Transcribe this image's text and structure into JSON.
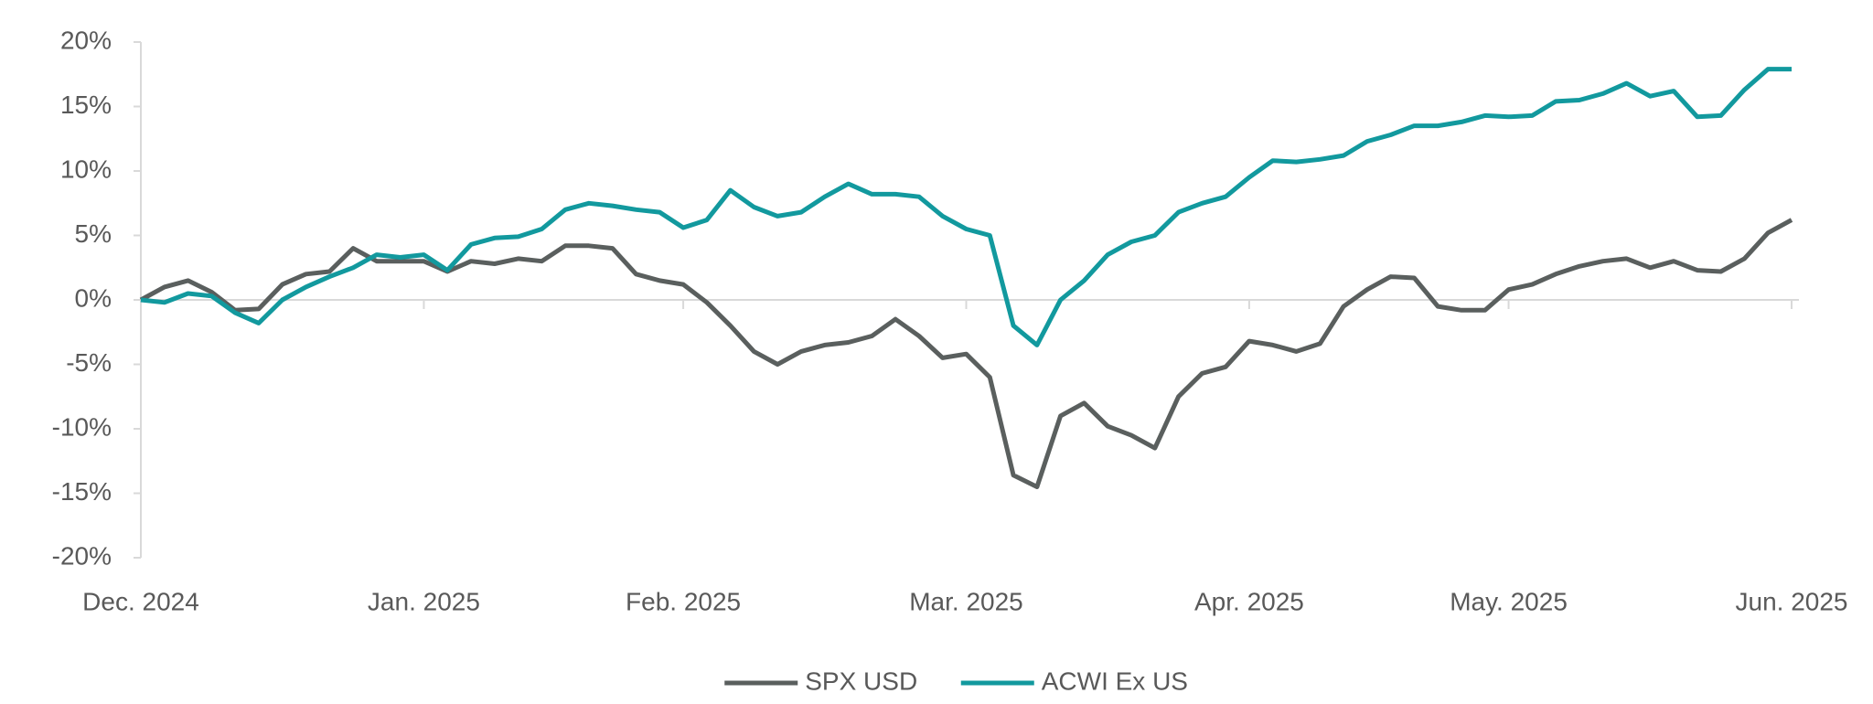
{
  "chart_data": {
    "type": "line",
    "categories": [
      "Dec. 2024",
      null,
      null,
      null,
      null,
      null,
      null,
      null,
      null,
      null,
      null,
      null,
      "Jan. 2025",
      null,
      null,
      null,
      null,
      null,
      null,
      null,
      null,
      null,
      null,
      "Feb. 2025",
      null,
      null,
      null,
      null,
      null,
      null,
      null,
      null,
      null,
      null,
      null,
      "Mar. 2025",
      null,
      null,
      null,
      null,
      null,
      null,
      null,
      null,
      null,
      null,
      null,
      "Apr. 2025",
      null,
      null,
      null,
      null,
      null,
      null,
      null,
      null,
      null,
      null,
      "May. 2025",
      null,
      null,
      null,
      null,
      null,
      null,
      null,
      null,
      null,
      null,
      null,
      "Jun. 2025"
    ],
    "series": [
      {
        "name": "SPX USD",
        "color": "#5a5f5e",
        "values": [
          0,
          1.0,
          1.5,
          0.6,
          -0.8,
          -0.7,
          1.2,
          2.0,
          2.2,
          4.0,
          3.0,
          3.0,
          3.0,
          2.2,
          3.0,
          2.8,
          3.2,
          3.0,
          4.2,
          4.2,
          4.0,
          2.0,
          1.5,
          1.2,
          -0.2,
          -2.0,
          -4.0,
          -5.0,
          -4.0,
          -3.5,
          -3.3,
          -2.8,
          -1.5,
          -2.8,
          -4.5,
          -4.2,
          -6.0,
          -13.6,
          -14.5,
          -9.0,
          -8.0,
          -9.8,
          -10.5,
          -11.5,
          -7.5,
          -5.7,
          -5.2,
          -3.2,
          -3.5,
          -4.0,
          -3.4,
          -0.5,
          0.8,
          1.8,
          1.7,
          -0.5,
          -0.8,
          -0.8,
          0.8,
          1.2,
          2.0,
          2.6,
          3.0,
          3.2,
          2.5,
          3.0,
          2.3,
          2.2,
          3.2,
          5.2,
          6.2
        ]
      },
      {
        "name": "ACWI Ex US",
        "color": "#12999e",
        "values": [
          0,
          -0.2,
          0.5,
          0.3,
          -1.0,
          -1.8,
          0.0,
          1.0,
          1.8,
          2.5,
          3.5,
          3.3,
          3.5,
          2.3,
          4.3,
          4.8,
          4.9,
          5.5,
          7.0,
          7.5,
          7.3,
          7.0,
          6.8,
          5.6,
          6.2,
          8.5,
          7.2,
          6.5,
          6.8,
          8.0,
          9.0,
          8.2,
          8.2,
          8.0,
          6.5,
          5.5,
          5.0,
          -2.0,
          -3.5,
          0.0,
          1.5,
          3.5,
          4.5,
          5.0,
          6.8,
          7.5,
          8.0,
          9.5,
          10.8,
          10.7,
          10.9,
          11.2,
          12.3,
          12.8,
          13.5,
          13.5,
          13.8,
          14.3,
          14.2,
          14.3,
          15.4,
          15.5,
          16.0,
          16.8,
          15.8,
          16.2,
          14.2,
          14.3,
          16.3,
          17.9,
          17.9
        ]
      }
    ],
    "ylim": [
      -20,
      20
    ],
    "yticks": [
      {
        "value": -20,
        "label": "-20%"
      },
      {
        "value": -15,
        "label": "-15%"
      },
      {
        "value": -10,
        "label": "-10%"
      },
      {
        "value": -5,
        "label": "-5%"
      },
      {
        "value": 0,
        "label": "0%"
      },
      {
        "value": 5,
        "label": "5%"
      },
      {
        "value": 10,
        "label": "10%"
      },
      {
        "value": 15,
        "label": "15%"
      },
      {
        "value": 20,
        "label": "20%"
      }
    ],
    "legend": "bottom"
  }
}
